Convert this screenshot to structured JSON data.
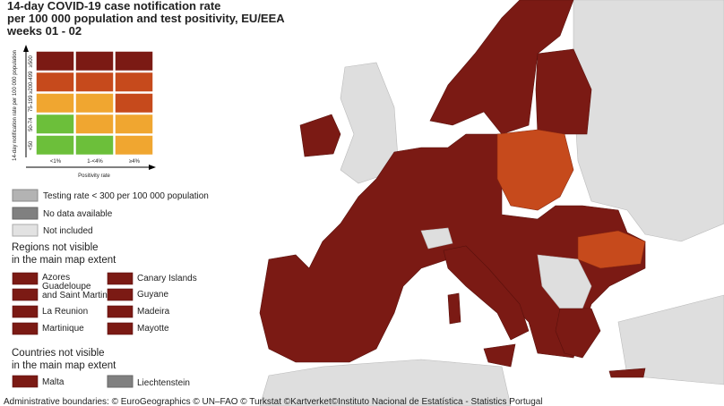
{
  "title": [
    "14-day COVID-19 case notification rate",
    "per 100 000 population and test positivity, EU/EEA",
    "weeks 01 - 02"
  ],
  "matrix": {
    "y_axis_label": "14-day notification rate per 100 000 population",
    "x_axis_label": "Positivity rate",
    "row_labels": [
      "≥500",
      "≥200-499",
      "75-199",
      "50-74",
      "<50"
    ],
    "col_labels": [
      "<1%",
      "1-<4%",
      "≥4%"
    ],
    "cell_colors": [
      [
        "#7b1a14",
        "#7b1a14",
        "#7b1a14"
      ],
      [
        "#c64a1c",
        "#c64a1c",
        "#c64a1c"
      ],
      [
        "#f0a630",
        "#f0a630",
        "#c64a1c"
      ],
      [
        "#6cbf3a",
        "#f0a630",
        "#f0a630"
      ],
      [
        "#6cbf3a",
        "#6cbf3a",
        "#f0a630"
      ]
    ]
  },
  "legend": [
    "Testing rate < 300 per 100 000 population",
    "No data available",
    "Not included"
  ],
  "regions": {
    "heading": [
      "Regions not visible",
      "in the main map extent"
    ],
    "items": [
      "Azores",
      [
        "Guadeloupe",
        "and Saint Martin"
      ],
      "La Reunion",
      "Martinique",
      "Canary Islands",
      "Guyane",
      "Madeira",
      "Mayotte"
    ]
  },
  "countries": {
    "heading": [
      "Countries not visible",
      "in the main map extent"
    ],
    "items": [
      "Malta",
      "Liechtenstein"
    ]
  },
  "footer": "Administrative boundaries: © EuroGeographics © UN–FAO © Turkstat ©Kartverket©Instituto Nacional de Estatística - Statistics Portugal"
}
